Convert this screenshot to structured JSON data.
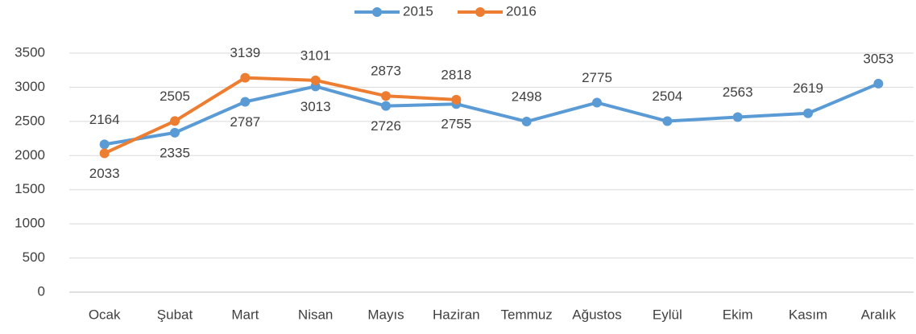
{
  "chart_data": {
    "type": "line",
    "categories": [
      "Ocak",
      "Şubat",
      "Mart",
      "Nisan",
      "Mayıs",
      "Haziran",
      "Temmuz",
      "Ağustos",
      "Eylül",
      "Ekim",
      "Kasım",
      "Aralık"
    ],
    "series": [
      {
        "name": "2015",
        "color": "#5b9bd5",
        "values": [
          2164,
          2335,
          2787,
          3013,
          2726,
          2755,
          2498,
          2775,
          2504,
          2563,
          2619,
          3053
        ]
      },
      {
        "name": "2016",
        "color": "#ed7d31",
        "values": [
          2033,
          2505,
          3139,
          3101,
          2873,
          2818,
          null,
          null,
          null,
          null,
          null,
          null
        ]
      }
    ],
    "ylim": [
      0,
      3500
    ],
    "yticks": [
      0,
      500,
      1000,
      1500,
      2000,
      2500,
      3000,
      3500
    ],
    "grid": true,
    "legend": "top"
  }
}
